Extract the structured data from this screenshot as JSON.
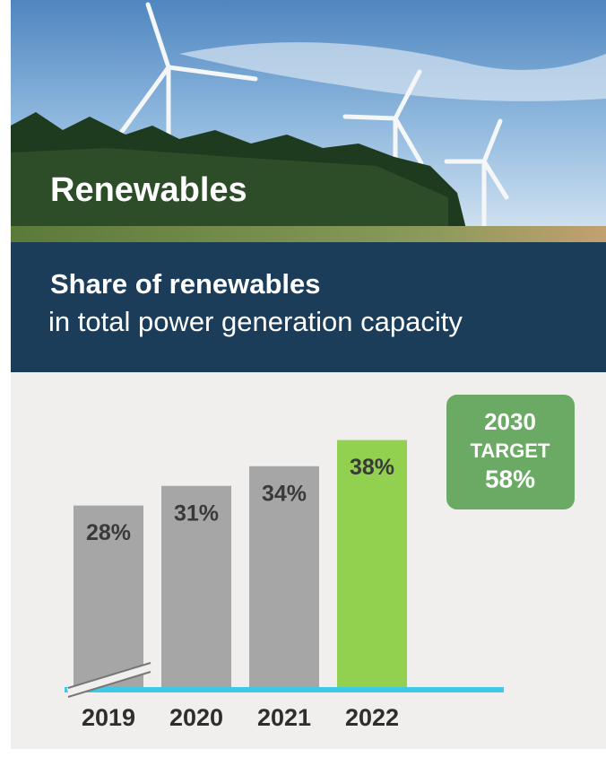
{
  "chart_data": {
    "type": "bar",
    "title": "Renewables",
    "subtitle_bold": "Share of renewables",
    "subtitle": "in total power generation capacity",
    "categories": [
      "2019",
      "2020",
      "2021",
      "2022"
    ],
    "values": [
      28,
      31,
      34,
      38
    ],
    "value_labels": [
      "28%",
      "31%",
      "34%",
      "38%"
    ],
    "colors": [
      "#a6a6a6",
      "#a6a6a6",
      "#a6a6a6",
      "#92d050"
    ],
    "target": {
      "year": "2030",
      "label": "TARGET",
      "value": "58%"
    }
  }
}
